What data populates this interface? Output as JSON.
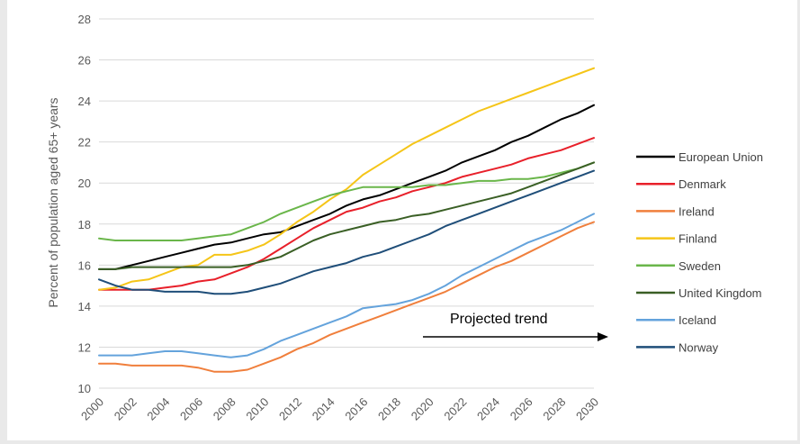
{
  "chart_data": {
    "type": "line",
    "title": "",
    "xlabel": "",
    "ylabel": "Percent of population aged 65+ years",
    "xlim": [
      2000,
      2030
    ],
    "ylim": [
      10,
      28
    ],
    "y_ticks": [
      10,
      12,
      14,
      16,
      18,
      20,
      22,
      24,
      26,
      28
    ],
    "x_ticks": [
      2000,
      2002,
      2004,
      2006,
      2008,
      2010,
      2012,
      2014,
      2016,
      2018,
      2020,
      2022,
      2024,
      2026,
      2028,
      2030
    ],
    "grid": "horizontal",
    "legend_position": "right",
    "annotation": "Projected trend",
    "x": [
      2000,
      2001,
      2002,
      2003,
      2004,
      2005,
      2006,
      2007,
      2008,
      2009,
      2010,
      2011,
      2012,
      2013,
      2014,
      2015,
      2016,
      2017,
      2018,
      2019,
      2020,
      2021,
      2022,
      2023,
      2024,
      2025,
      2026,
      2027,
      2028,
      2029,
      2030
    ],
    "series": [
      {
        "name": "European Union",
        "color": "#000000",
        "values": [
          15.8,
          15.8,
          16.0,
          16.2,
          16.4,
          16.6,
          16.8,
          17.0,
          17.1,
          17.3,
          17.5,
          17.6,
          17.9,
          18.2,
          18.5,
          18.9,
          19.2,
          19.4,
          19.7,
          20.0,
          20.3,
          20.6,
          21.0,
          21.3,
          21.6,
          22.0,
          22.3,
          22.7,
          23.1,
          23.4,
          23.8
        ]
      },
      {
        "name": "Denmark",
        "color": "#e8202a",
        "values": [
          14.8,
          14.8,
          14.8,
          14.8,
          14.9,
          15.0,
          15.2,
          15.3,
          15.6,
          15.9,
          16.3,
          16.8,
          17.3,
          17.8,
          18.2,
          18.6,
          18.8,
          19.1,
          19.3,
          19.6,
          19.8,
          20.0,
          20.3,
          20.5,
          20.7,
          20.9,
          21.2,
          21.4,
          21.6,
          21.9,
          22.2
        ]
      },
      {
        "name": "Ireland",
        "color": "#f07f3c",
        "values": [
          11.2,
          11.2,
          11.1,
          11.1,
          11.1,
          11.1,
          11.0,
          10.8,
          10.8,
          10.9,
          11.2,
          11.5,
          11.9,
          12.2,
          12.6,
          12.9,
          13.2,
          13.5,
          13.8,
          14.1,
          14.4,
          14.7,
          15.1,
          15.5,
          15.9,
          16.2,
          16.6,
          17.0,
          17.4,
          17.8,
          18.1
        ]
      },
      {
        "name": "Finland",
        "color": "#f5c518",
        "values": [
          14.8,
          14.9,
          15.2,
          15.3,
          15.6,
          15.9,
          16.0,
          16.5,
          16.5,
          16.7,
          17.0,
          17.5,
          18.1,
          18.6,
          19.2,
          19.7,
          20.4,
          20.9,
          21.4,
          21.9,
          22.3,
          22.7,
          23.1,
          23.5,
          23.8,
          24.1,
          24.4,
          24.7,
          25.0,
          25.3,
          25.6
        ]
      },
      {
        "name": "Sweden",
        "color": "#6ab64a",
        "values": [
          17.3,
          17.2,
          17.2,
          17.2,
          17.2,
          17.2,
          17.3,
          17.4,
          17.5,
          17.8,
          18.1,
          18.5,
          18.8,
          19.1,
          19.4,
          19.6,
          19.8,
          19.8,
          19.8,
          19.8,
          19.9,
          19.9,
          20.0,
          20.1,
          20.1,
          20.2,
          20.2,
          20.3,
          20.5,
          20.7,
          21.0
        ]
      },
      {
        "name": "United Kingdom",
        "color": "#3a5f25",
        "values": [
          15.8,
          15.8,
          15.9,
          15.9,
          15.9,
          15.9,
          15.9,
          15.9,
          15.9,
          16.0,
          16.2,
          16.4,
          16.8,
          17.2,
          17.5,
          17.7,
          17.9,
          18.1,
          18.2,
          18.4,
          18.5,
          18.7,
          18.9,
          19.1,
          19.3,
          19.5,
          19.8,
          20.1,
          20.4,
          20.7,
          21.0
        ]
      },
      {
        "name": "Iceland",
        "color": "#64a3dc",
        "values": [
          11.6,
          11.6,
          11.6,
          11.7,
          11.8,
          11.8,
          11.7,
          11.6,
          11.5,
          11.6,
          11.9,
          12.3,
          12.6,
          12.9,
          13.2,
          13.5,
          13.9,
          14.0,
          14.1,
          14.3,
          14.6,
          15.0,
          15.5,
          15.9,
          16.3,
          16.7,
          17.1,
          17.4,
          17.7,
          18.1,
          18.5
        ]
      },
      {
        "name": "Norway",
        "color": "#1f4e79",
        "values": [
          15.3,
          15.0,
          14.8,
          14.8,
          14.7,
          14.7,
          14.7,
          14.6,
          14.6,
          14.7,
          14.9,
          15.1,
          15.4,
          15.7,
          15.9,
          16.1,
          16.4,
          16.6,
          16.9,
          17.2,
          17.5,
          17.9,
          18.2,
          18.5,
          18.8,
          19.1,
          19.4,
          19.7,
          20.0,
          20.3,
          20.6
        ]
      }
    ]
  }
}
